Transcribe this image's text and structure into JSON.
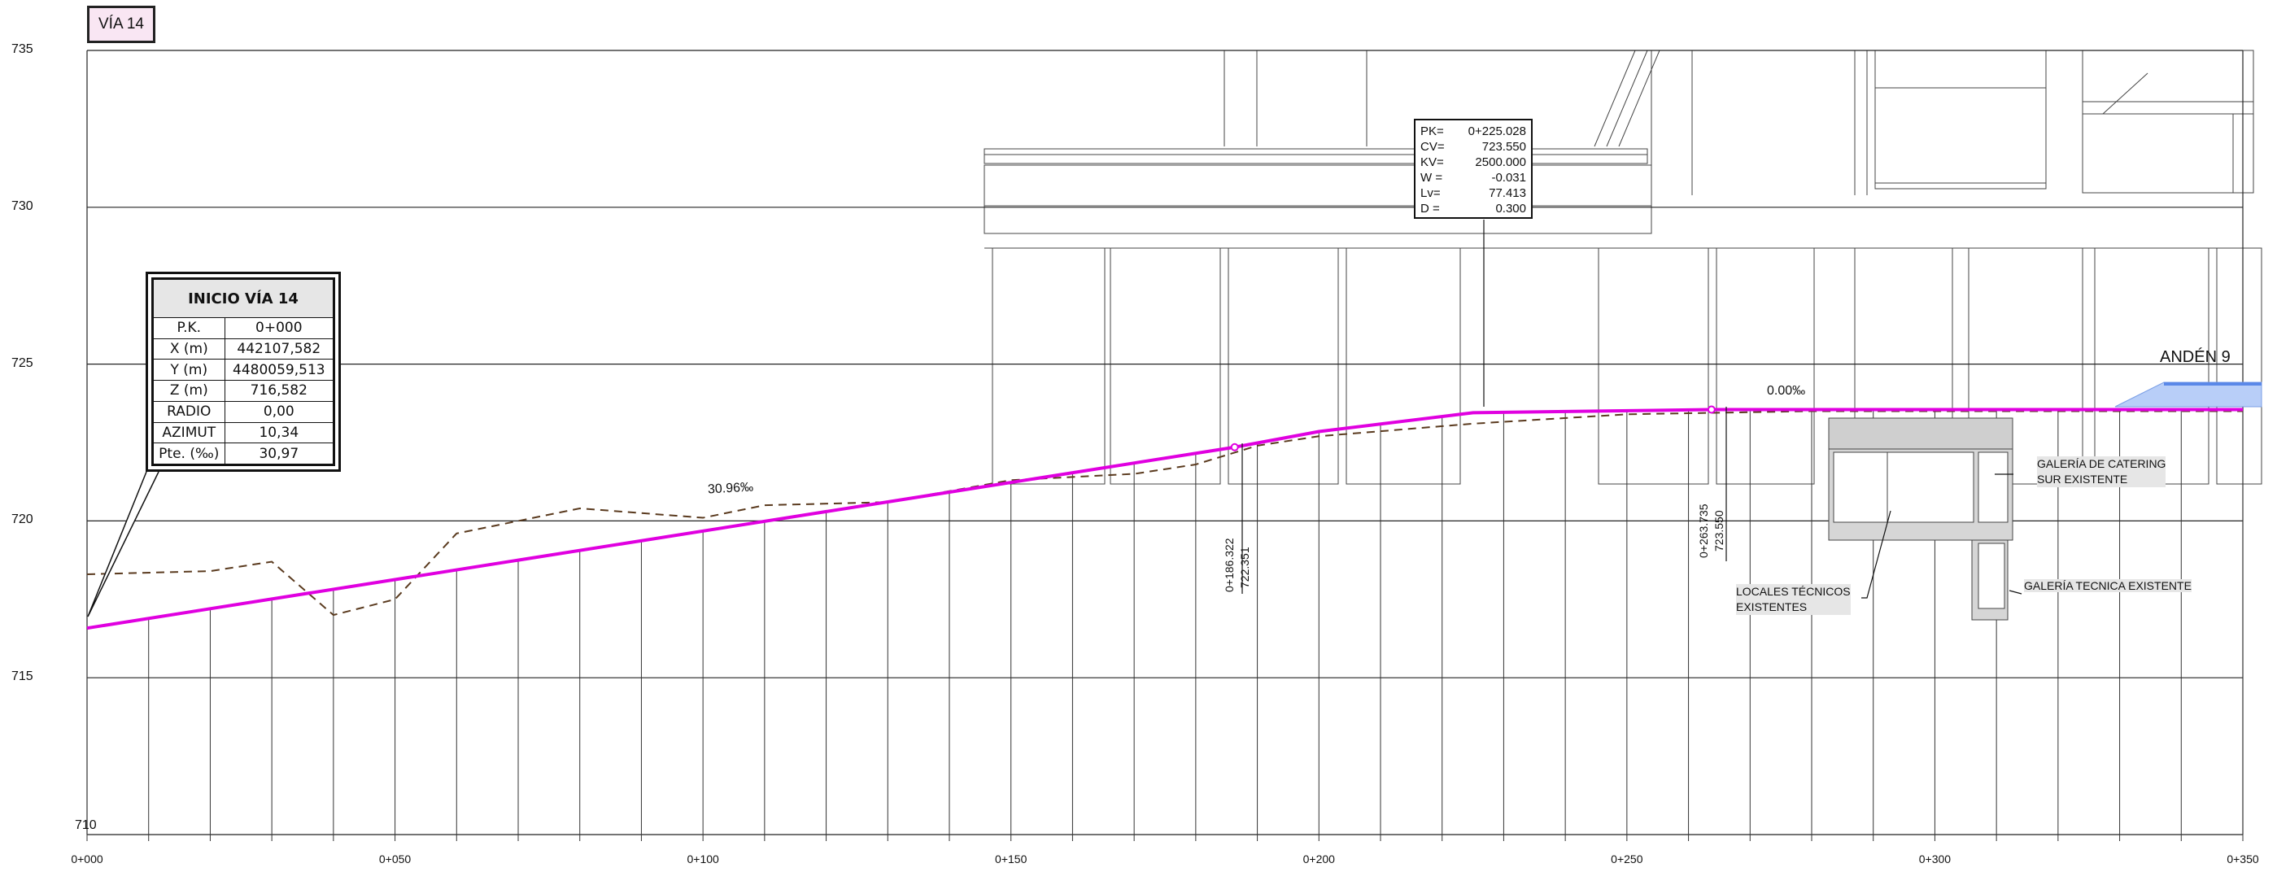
{
  "title": "VÍA 14",
  "chart_data": {
    "type": "line",
    "x_range": [
      0,
      350
    ],
    "y_range": [
      710,
      735
    ],
    "y_ticks": [
      735,
      730,
      725,
      720,
      715,
      710
    ],
    "x_tick_labels": [
      "0+000",
      "0+050",
      "0+100",
      "0+150",
      "0+200",
      "0+250",
      "0+300",
      "0+350"
    ],
    "series": [
      {
        "kind": "rasante",
        "color": "#e000e0",
        "points": [
          [
            0,
            716.582
          ],
          [
            186.322,
            722.351
          ],
          [
            200,
            722.85
          ],
          [
            225.028,
            723.45
          ],
          [
            263.735,
            723.55
          ],
          [
            350,
            723.55
          ]
        ]
      },
      {
        "kind": "terreno",
        "color": "#5a3a1e",
        "points": [
          [
            0,
            718.3
          ],
          [
            20,
            718.4
          ],
          [
            30,
            718.7
          ],
          [
            40,
            717
          ],
          [
            50,
            717.5
          ],
          [
            60,
            719.6
          ],
          [
            80,
            720.4
          ],
          [
            100,
            720.1
          ],
          [
            110,
            720.5
          ],
          [
            130,
            720.6
          ],
          [
            150,
            721.3
          ],
          [
            170,
            721.5
          ],
          [
            180,
            721.8
          ],
          [
            190,
            722.4
          ],
          [
            200,
            722.7
          ],
          [
            225,
            723.1
          ],
          [
            250,
            723.4
          ],
          [
            280,
            723.5
          ],
          [
            350,
            723.5
          ]
        ]
      }
    ],
    "slope_labels": [
      "30.96‰",
      "0.00‰"
    ]
  },
  "inicio": {
    "title": "INICIO VÍA 14",
    "rows": [
      {
        "k": "P.K.",
        "v": "0+000"
      },
      {
        "k": "X (m)",
        "v": "442107,582"
      },
      {
        "k": "Y (m)",
        "v": "4480059,513"
      },
      {
        "k": "Z (m)",
        "v": "716,582"
      },
      {
        "k": "RADIO",
        "v": "0,00"
      },
      {
        "k": "AZIMUT",
        "v": "10,34"
      },
      {
        "k": "Pte. (‰)",
        "v": "30,97"
      }
    ]
  },
  "vertical_curve": {
    "rows": [
      {
        "k": "PK=",
        "v": "0+225.028"
      },
      {
        "k": "CV=",
        "v": "723.550"
      },
      {
        "k": "KV=",
        "v": "2500.000"
      },
      {
        "k": "W =",
        "v": "-0.031"
      },
      {
        "k": "Lv=",
        "v": "77.413"
      },
      {
        "k": "D =",
        "v": "0.300"
      }
    ]
  },
  "points": [
    {
      "pk": "0+186.322",
      "z": "722.351"
    },
    {
      "pk": "0+263.735",
      "z": "723.550"
    }
  ],
  "annotations": {
    "anden": "ANDÉN 9",
    "galeria_catering": [
      "GALERÍA DE CATERING",
      "SUR EXISTENTE"
    ],
    "galeria_tecnica": "GALERÍA TECNICA EXISTENTE",
    "locales": [
      "LOCALES TÉCNICOS",
      "EXISTENTES"
    ]
  },
  "colors": {
    "rasante": "#e000e0",
    "terreno": "#5a3a1e",
    "grid": "#222222",
    "platform": "#8fb0f0"
  }
}
